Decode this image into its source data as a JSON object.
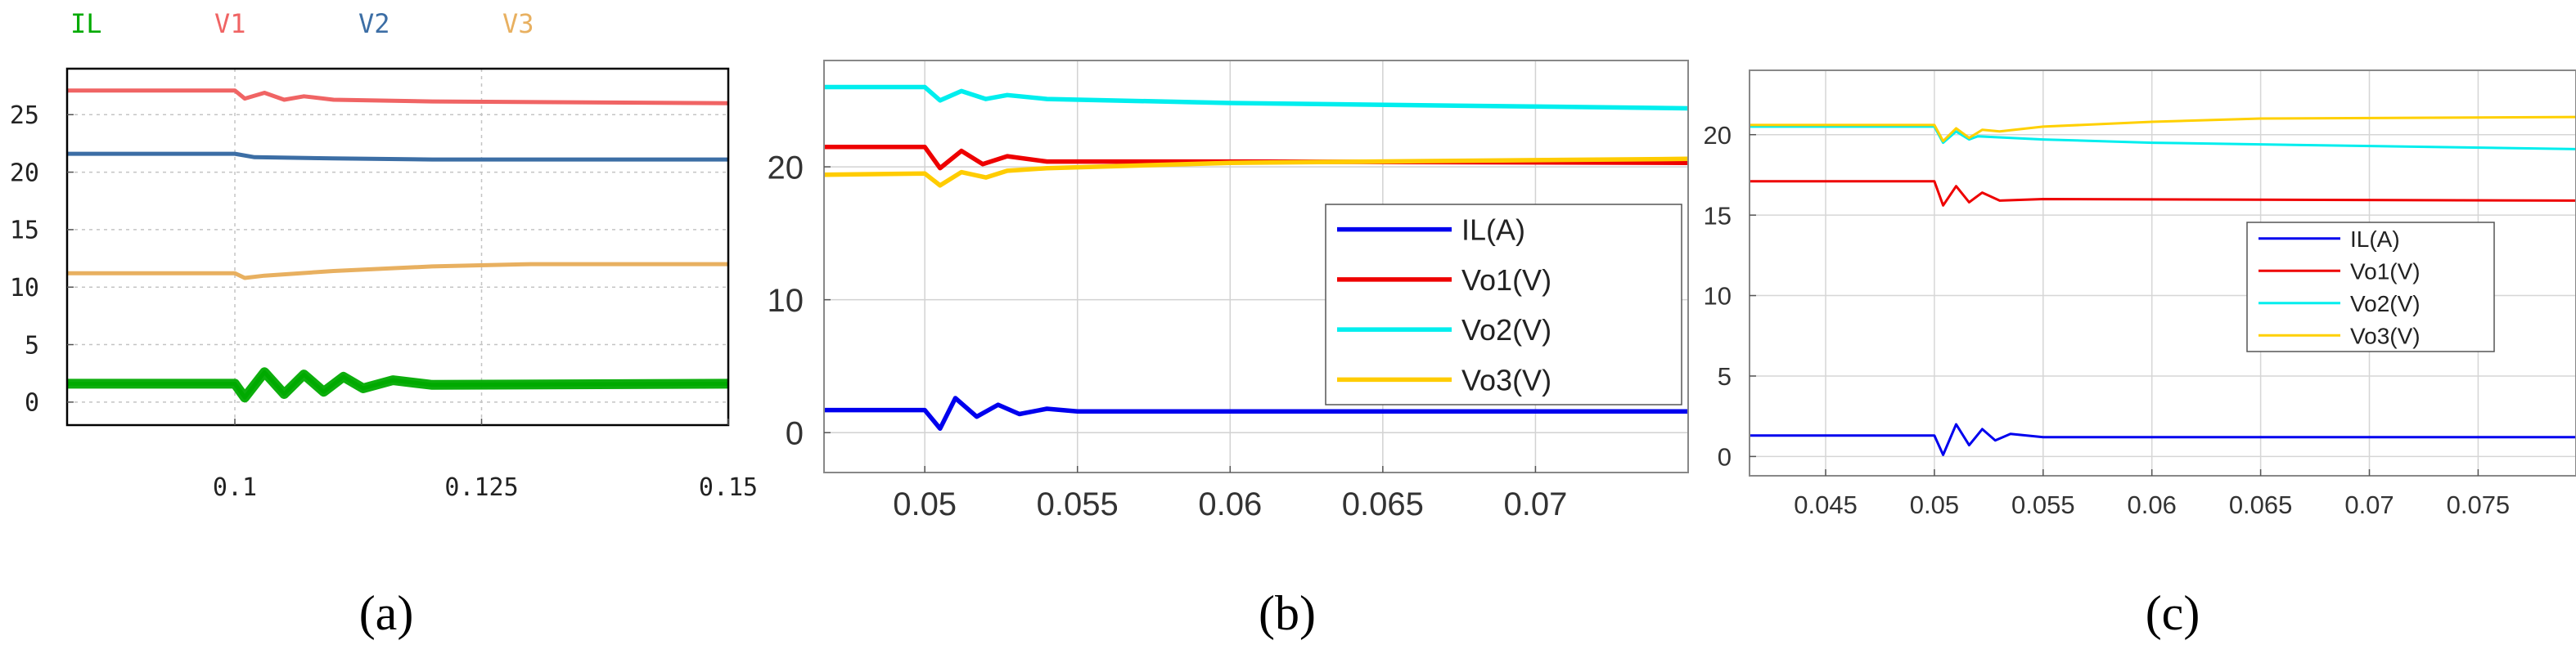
{
  "panel_labels": [
    "(a)",
    "(b)",
    "(c)"
  ],
  "chart_data": [
    {
      "type": "line",
      "panel": "(a)",
      "title": "",
      "xlabel": "",
      "ylabel": "",
      "xlim": [
        0.083,
        0.15
      ],
      "ylim": [
        -2,
        29
      ],
      "xticks": [
        0.1,
        0.125,
        0.15
      ],
      "xtick_labels": [
        "0.1",
        "0.125",
        "0.15"
      ],
      "yticks": [
        0,
        5,
        10,
        15,
        20,
        25
      ],
      "ytick_labels": [
        "0",
        "5",
        "10",
        "15",
        "20",
        "25"
      ],
      "grid": true,
      "legend_position": "top-outside",
      "series": [
        {
          "name": "IL",
          "color": "#00aa00",
          "points": [
            [
              0.083,
              1.6
            ],
            [
              0.1,
              1.6
            ],
            [
              0.101,
              0.4
            ],
            [
              0.103,
              2.6
            ],
            [
              0.105,
              0.7
            ],
            [
              0.107,
              2.4
            ],
            [
              0.109,
              0.9
            ],
            [
              0.111,
              2.2
            ],
            [
              0.113,
              1.2
            ],
            [
              0.116,
              1.9
            ],
            [
              0.12,
              1.5
            ],
            [
              0.15,
              1.6
            ]
          ]
        },
        {
          "name": "V1",
          "color": "#f06464",
          "points": [
            [
              0.083,
              27.1
            ],
            [
              0.1,
              27.1
            ],
            [
              0.101,
              26.4
            ],
            [
              0.103,
              26.9
            ],
            [
              0.105,
              26.3
            ],
            [
              0.107,
              26.6
            ],
            [
              0.11,
              26.3
            ],
            [
              0.12,
              26.15
            ],
            [
              0.15,
              26.0
            ]
          ]
        },
        {
          "name": "V2",
          "color": "#3c6ea5",
          "points": [
            [
              0.083,
              21.6
            ],
            [
              0.1,
              21.6
            ],
            [
              0.102,
              21.3
            ],
            [
              0.11,
              21.2
            ],
            [
              0.12,
              21.1
            ],
            [
              0.15,
              21.1
            ]
          ]
        },
        {
          "name": "V3",
          "color": "#e8b060",
          "points": [
            [
              0.083,
              11.2
            ],
            [
              0.1,
              11.2
            ],
            [
              0.101,
              10.8
            ],
            [
              0.103,
              11.0
            ],
            [
              0.11,
              11.4
            ],
            [
              0.12,
              11.8
            ],
            [
              0.13,
              12.0
            ],
            [
              0.15,
              12.0
            ]
          ]
        }
      ]
    },
    {
      "type": "line",
      "panel": "(b)",
      "title": "",
      "xlabel": "",
      "ylabel": "",
      "xlim": [
        0.0467,
        0.075
      ],
      "ylim": [
        -3,
        28
      ],
      "xticks": [
        0.05,
        0.055,
        0.06,
        0.065,
        0.07
      ],
      "xtick_labels": [
        "0.05",
        "0.055",
        "0.06",
        "0.065",
        "0.07"
      ],
      "yticks": [
        0,
        10,
        20
      ],
      "ytick_labels": [
        "0",
        "10",
        "20"
      ],
      "grid": true,
      "legend_position": "lower-right",
      "series": [
        {
          "name": "IL(A)",
          "color": "#0000ee",
          "points": [
            [
              0.0467,
              1.7
            ],
            [
              0.05,
              1.7
            ],
            [
              0.0505,
              0.3
            ],
            [
              0.051,
              2.6
            ],
            [
              0.0517,
              1.2
            ],
            [
              0.0524,
              2.1
            ],
            [
              0.0531,
              1.4
            ],
            [
              0.054,
              1.8
            ],
            [
              0.055,
              1.6
            ],
            [
              0.075,
              1.6
            ]
          ]
        },
        {
          "name": "Vo1(V)",
          "color": "#ee0000",
          "points": [
            [
              0.0467,
              21.5
            ],
            [
              0.05,
              21.5
            ],
            [
              0.0505,
              19.9
            ],
            [
              0.0512,
              21.2
            ],
            [
              0.0519,
              20.2
            ],
            [
              0.0527,
              20.8
            ],
            [
              0.054,
              20.4
            ],
            [
              0.06,
              20.4
            ],
            [
              0.075,
              20.3
            ]
          ]
        },
        {
          "name": "Vo2(V)",
          "color": "#00eeee",
          "points": [
            [
              0.0467,
              26.0
            ],
            [
              0.05,
              26.0
            ],
            [
              0.0505,
              25.0
            ],
            [
              0.0512,
              25.7
            ],
            [
              0.052,
              25.1
            ],
            [
              0.0527,
              25.4
            ],
            [
              0.054,
              25.1
            ],
            [
              0.06,
              24.8
            ],
            [
              0.075,
              24.4
            ]
          ]
        },
        {
          "name": "Vo3(V)",
          "color": "#ffcc00",
          "points": [
            [
              0.0467,
              19.4
            ],
            [
              0.05,
              19.5
            ],
            [
              0.0505,
              18.6
            ],
            [
              0.0512,
              19.6
            ],
            [
              0.052,
              19.2
            ],
            [
              0.0527,
              19.7
            ],
            [
              0.054,
              19.9
            ],
            [
              0.06,
              20.3
            ],
            [
              0.075,
              20.6
            ]
          ]
        }
      ]
    },
    {
      "type": "line",
      "panel": "(c)",
      "title": "",
      "xlabel": "",
      "ylabel": "",
      "xlim": [
        0.0415,
        0.0795
      ],
      "ylim": [
        -1.2,
        24
      ],
      "xticks": [
        0.045,
        0.05,
        0.055,
        0.06,
        0.065,
        0.07,
        0.075
      ],
      "xtick_labels": [
        "0.045",
        "0.05",
        "0.055",
        "0.06",
        "0.065",
        "0.07",
        "0.075"
      ],
      "yticks": [
        0,
        5,
        10,
        15,
        20
      ],
      "ytick_labels": [
        "0",
        "5",
        "10",
        "15",
        "20"
      ],
      "grid": true,
      "legend_position": "lower-right",
      "series": [
        {
          "name": "IL(A)",
          "color": "#0000ee",
          "points": [
            [
              0.0415,
              1.3
            ],
            [
              0.05,
              1.3
            ],
            [
              0.0504,
              0.1
            ],
            [
              0.051,
              2.0
            ],
            [
              0.0516,
              0.7
            ],
            [
              0.0522,
              1.7
            ],
            [
              0.0528,
              1.0
            ],
            [
              0.0535,
              1.4
            ],
            [
              0.055,
              1.2
            ],
            [
              0.0795,
              1.2
            ]
          ]
        },
        {
          "name": "Vo1(V)",
          "color": "#ee0000",
          "points": [
            [
              0.0415,
              17.1
            ],
            [
              0.05,
              17.1
            ],
            [
              0.0504,
              15.6
            ],
            [
              0.051,
              16.8
            ],
            [
              0.0516,
              15.8
            ],
            [
              0.0522,
              16.4
            ],
            [
              0.053,
              15.9
            ],
            [
              0.055,
              16.0
            ],
            [
              0.0795,
              15.9
            ]
          ]
        },
        {
          "name": "Vo2(V)",
          "color": "#00eeee",
          "points": [
            [
              0.0415,
              20.5
            ],
            [
              0.05,
              20.5
            ],
            [
              0.0504,
              19.5
            ],
            [
              0.051,
              20.2
            ],
            [
              0.0516,
              19.7
            ],
            [
              0.052,
              19.9
            ],
            [
              0.055,
              19.7
            ],
            [
              0.06,
              19.5
            ],
            [
              0.0795,
              19.1
            ]
          ]
        },
        {
          "name": "Vo3(V)",
          "color": "#ffd000",
          "points": [
            [
              0.0415,
              20.6
            ],
            [
              0.05,
              20.6
            ],
            [
              0.0504,
              19.6
            ],
            [
              0.051,
              20.4
            ],
            [
              0.0516,
              19.8
            ],
            [
              0.0522,
              20.3
            ],
            [
              0.053,
              20.2
            ],
            [
              0.055,
              20.5
            ],
            [
              0.06,
              20.8
            ],
            [
              0.065,
              21.0
            ],
            [
              0.0795,
              21.1
            ]
          ]
        }
      ]
    }
  ]
}
